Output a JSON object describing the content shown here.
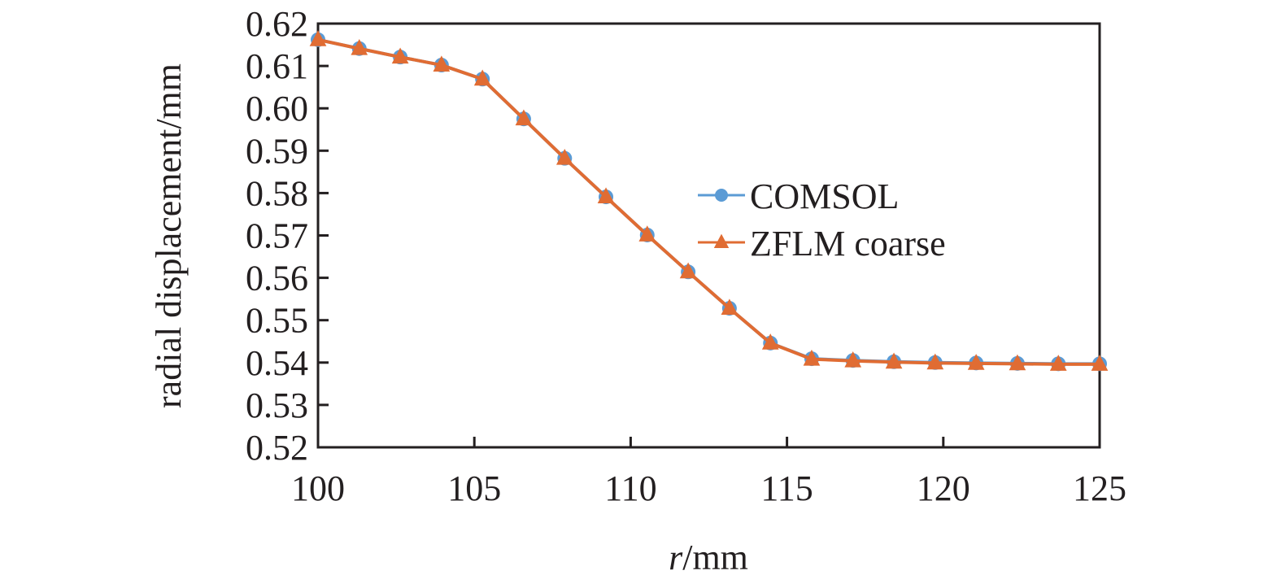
{
  "chart_data": {
    "type": "line",
    "title": "",
    "xlabel": "r/mm",
    "xlabel_italic": "r",
    "xlabel_unit": "/mm",
    "ylabel": "radial displacement/mm",
    "xlim": [
      100,
      125
    ],
    "ylim": [
      0.52,
      0.62
    ],
    "x_ticks": [
      "100",
      "105",
      "110",
      "115",
      "120",
      "125"
    ],
    "y_ticks": [
      "0.52",
      "0.53",
      "0.54",
      "0.55",
      "0.56",
      "0.57",
      "0.58",
      "0.59",
      "0.60",
      "0.61",
      "0.62"
    ],
    "grid": false,
    "legend_position": "center-right inside plot",
    "x": [
      100.0,
      101.32,
      102.63,
      103.95,
      105.26,
      106.58,
      107.89,
      109.21,
      110.53,
      111.84,
      113.16,
      114.47,
      115.79,
      117.11,
      118.42,
      119.74,
      121.05,
      122.37,
      123.68,
      125.0
    ],
    "series": [
      {
        "name": "COMSOL",
        "color": "#5b9bd5",
        "marker": "circle",
        "values": [
          0.6162,
          0.6141,
          0.6121,
          0.6102,
          0.6069,
          0.5975,
          0.5882,
          0.5791,
          0.5701,
          0.5614,
          0.5528,
          0.5446,
          0.5409,
          0.5405,
          0.5402,
          0.54,
          0.5399,
          0.5398,
          0.5397,
          0.5397
        ]
      },
      {
        "name": "ZFLM coarse",
        "color": "#e06c33",
        "marker": "triangle",
        "values": [
          0.6162,
          0.6141,
          0.6121,
          0.6102,
          0.6069,
          0.5975,
          0.5882,
          0.5791,
          0.5701,
          0.5614,
          0.5528,
          0.5446,
          0.5408,
          0.5404,
          0.5401,
          0.5399,
          0.5398,
          0.5397,
          0.5396,
          0.5396
        ]
      }
    ]
  }
}
